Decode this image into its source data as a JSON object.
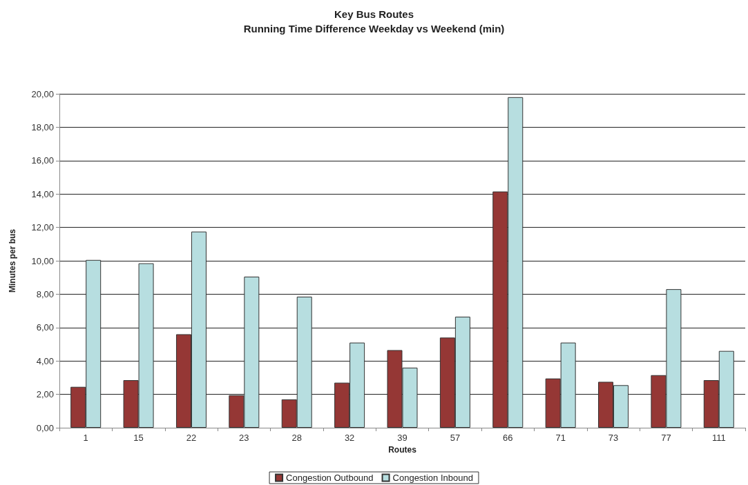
{
  "chart_data": {
    "type": "bar",
    "title": "Key Bus Routes",
    "subtitle": "Running Time Difference Weekday vs Weekend (min)",
    "xlabel": "Routes",
    "ylabel": "Minutes per bus",
    "categories": [
      "1",
      "15",
      "22",
      "23",
      "28",
      "32",
      "39",
      "57",
      "66",
      "71",
      "73",
      "77",
      "111"
    ],
    "series": [
      {
        "name": "Congestion Outbound",
        "color": "#953735",
        "values": [
          2.45,
          2.85,
          5.6,
          1.95,
          1.7,
          2.7,
          4.65,
          5.4,
          14.15,
          2.95,
          2.75,
          3.15,
          2.85
        ]
      },
      {
        "name": "Congestion Inbound",
        "color": "#b7dee0",
        "values": [
          10.05,
          9.85,
          11.75,
          9.05,
          7.85,
          5.1,
          3.6,
          6.65,
          19.8,
          5.1,
          2.55,
          8.3,
          4.6
        ]
      }
    ],
    "ylim": [
      0,
      20
    ],
    "yticks": [
      {
        "value": 0,
        "label": "0,00"
      },
      {
        "value": 2,
        "label": "2,00"
      },
      {
        "value": 4,
        "label": "4,00"
      },
      {
        "value": 6,
        "label": "6,00"
      },
      {
        "value": 8,
        "label": "8,00"
      },
      {
        "value": 10,
        "label": "10,00"
      },
      {
        "value": 12,
        "label": "12,00"
      },
      {
        "value": 14,
        "label": "14,00"
      },
      {
        "value": 16,
        "label": "16,00"
      },
      {
        "value": 18,
        "label": "18,00"
      },
      {
        "value": 20,
        "label": "20,00"
      }
    ],
    "grid": "y",
    "legend": "bottom"
  }
}
